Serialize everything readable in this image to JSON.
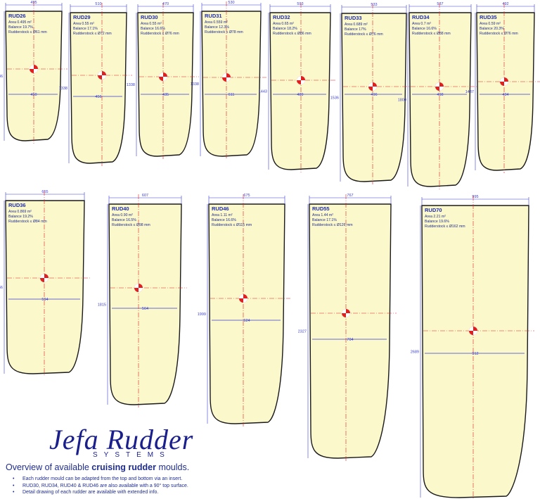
{
  "rudders": [
    {
      "id": "RUD26",
      "area": "Area 0.495 m²",
      "balance": "Balance 19.7%",
      "stock": "Rudderstock ≤ Ø61 mm",
      "top": "495",
      "height": "1186",
      "width": "450"
    },
    {
      "id": "RUD29",
      "area": "Area 0.55 m²",
      "balance": "Balance 17.1%",
      "stock": "Rudderstock ≤ Ø72 mm",
      "top": "510",
      "height": "1338",
      "width": "456"
    },
    {
      "id": "RUD30",
      "area": "Area 0.55 m²",
      "balance": "Balance 16.6%",
      "stock": "Rudderstock ≤ Ø76 mm",
      "top": "470",
      "height": "1338",
      "width": "435"
    },
    {
      "id": "RUD31",
      "area": "Area 0.559 m²",
      "balance": "Balance 12.3%",
      "stock": "Rudderstock ≤ Ø78 mm",
      "top": "530",
      "height": "1338",
      "width": "611"
    },
    {
      "id": "RUD32",
      "area": "Area 0.65 m²",
      "balance": "Balance 18.2%",
      "stock": "Rudderstock ≤ Ø86 mm",
      "top": "593",
      "height": "1443",
      "width": "489"
    },
    {
      "id": "RUD33",
      "area": "Area 0.689 m²",
      "balance": "Balance 17%",
      "stock": "Rudderstock ≤ Ø76 mm",
      "top": "533",
      "height": "1536",
      "width": "496"
    },
    {
      "id": "RUD34",
      "area": "Area 0.7 m²",
      "balance": "Balance 16.6%",
      "stock": "Rudderstock ≤ Ø88 mm",
      "top": "537",
      "height": "1800",
      "width": "498"
    },
    {
      "id": "RUD35",
      "area": "Area 0.59 m²",
      "balance": "Balance 20.3%",
      "stock": "Rudderstock ≤ Ø76 mm",
      "top": "492",
      "height": "1437",
      "width": "434"
    },
    {
      "id": "RUD36",
      "area": "Area 0.869 m²",
      "balance": "Balance 19.2%",
      "stock": "Rudderstock ≤ Ø84 mm",
      "top": "655",
      "height": "1566",
      "width": "594"
    },
    {
      "id": "RUD40",
      "area": "Area 0.90 m²",
      "balance": "Balance 16.5%",
      "stock": "Rudderstock ≤ Ø98 mm",
      "top": "607",
      "height": "1815",
      "width": "564"
    },
    {
      "id": "RUD46",
      "area": "Area 1.11 m²",
      "balance": "Balance 16.6%",
      "stock": "Rudderstock ≤ Ø115 mm",
      "top": "675",
      "height": "1999",
      "width": "624"
    },
    {
      "id": "RUD55",
      "area": "Area 1.44 m²",
      "balance": "Balance 17.1%",
      "stock": "Rudderstock ≤ Ø126 mm",
      "top": "767",
      "height": "2327",
      "width": "704"
    },
    {
      "id": "RUD70",
      "area": "Area 2.21 m²",
      "balance": "Balance 19.6%",
      "stock": "Rudderstock ≤ Ø162 mm",
      "top": "995",
      "height": "2689",
      "width": "912"
    }
  ],
  "logo": {
    "main": "Jefa Rudder",
    "sub": "SYSTEMS"
  },
  "overview": {
    "pre": "Overview of available ",
    "bold": "cruising rudder",
    "post": " moulds."
  },
  "notes": [
    "Each rudder mould can be adapted from the top and bottom via an insert.",
    "RUD30, RUD34, RUD40 & RUD46 are also available with a 90° top surface.",
    "Detail drawing of each rudder are available with extended info."
  ],
  "colors": {
    "fill": "#fbf8cc",
    "outline": "#1a1a1a",
    "dim": "#3a3fd0",
    "axis": "#e02020",
    "text": "#1f2d8f"
  }
}
